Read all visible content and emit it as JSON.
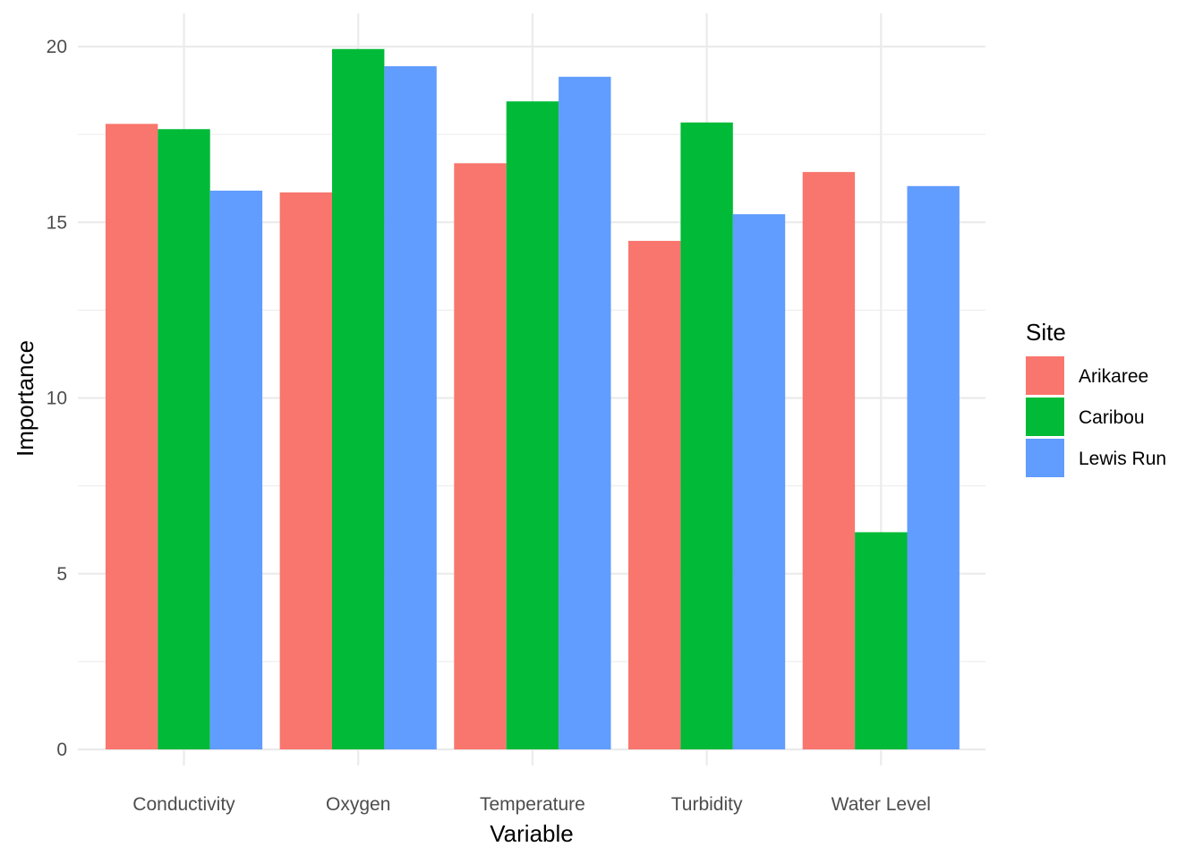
{
  "chart_data": {
    "type": "bar",
    "title": "",
    "xlabel": "Variable",
    "ylabel": "Importance",
    "ylim": [
      0,
      20.9
    ],
    "yticks": [
      0,
      5,
      10,
      15,
      20
    ],
    "grid": true,
    "categories": [
      "Conductivity",
      "Oxygen",
      "Temperature",
      "Turbidity",
      "Water Level"
    ],
    "legend": {
      "title": "Site",
      "position": "right"
    },
    "series": [
      {
        "name": "Arikaree",
        "color": "#F8766D",
        "values": [
          17.8,
          15.85,
          16.68,
          14.47,
          16.43
        ]
      },
      {
        "name": "Caribou",
        "color": "#00BA38",
        "values": [
          17.65,
          19.93,
          18.44,
          17.84,
          6.18
        ]
      },
      {
        "name": "Lewis Run",
        "color": "#619CFF",
        "values": [
          15.9,
          19.44,
          19.14,
          15.23,
          16.03
        ]
      }
    ]
  }
}
